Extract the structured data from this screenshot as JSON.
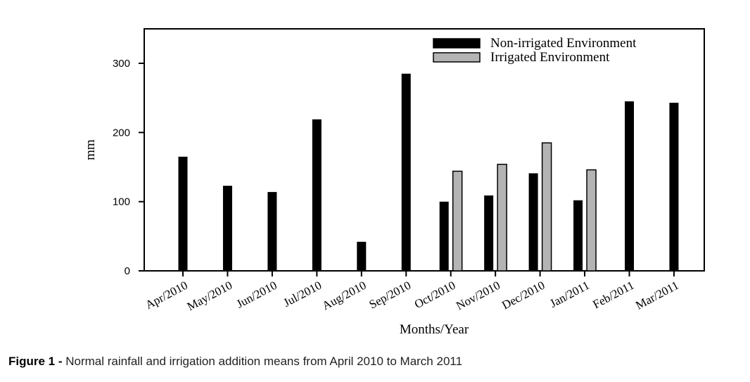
{
  "chart_data": {
    "type": "bar",
    "categories": [
      "Apr/2010",
      "May/2010",
      "Jun/2010",
      "Jul/2010",
      "Aug/2010",
      "Sep/2010",
      "Oct/2010",
      "Nov/2010",
      "Dec/2010",
      "Jan/2011",
      "Feb/2011",
      "Mar/2011"
    ],
    "series": [
      {
        "name": "Non-irrigated Environment",
        "color": "#000000",
        "values": [
          165,
          123,
          114,
          219,
          42,
          285,
          100,
          109,
          141,
          102,
          245,
          243
        ]
      },
      {
        "name": "Irrigated Environment",
        "color": "#b4b4b4",
        "values": [
          null,
          null,
          null,
          null,
          null,
          null,
          144,
          154,
          185,
          146,
          null,
          null
        ]
      }
    ],
    "xlabel": "Months/Year",
    "ylabel": "mm",
    "ylim": [
      0,
      350
    ],
    "yticks": [
      0,
      100,
      200,
      300
    ],
    "legend_position": "top-right",
    "grid": false
  },
  "caption": {
    "label": "Figure 1 -",
    "text": " Normal rainfall and irrigation addition means from April 2010 to March 2011"
  }
}
